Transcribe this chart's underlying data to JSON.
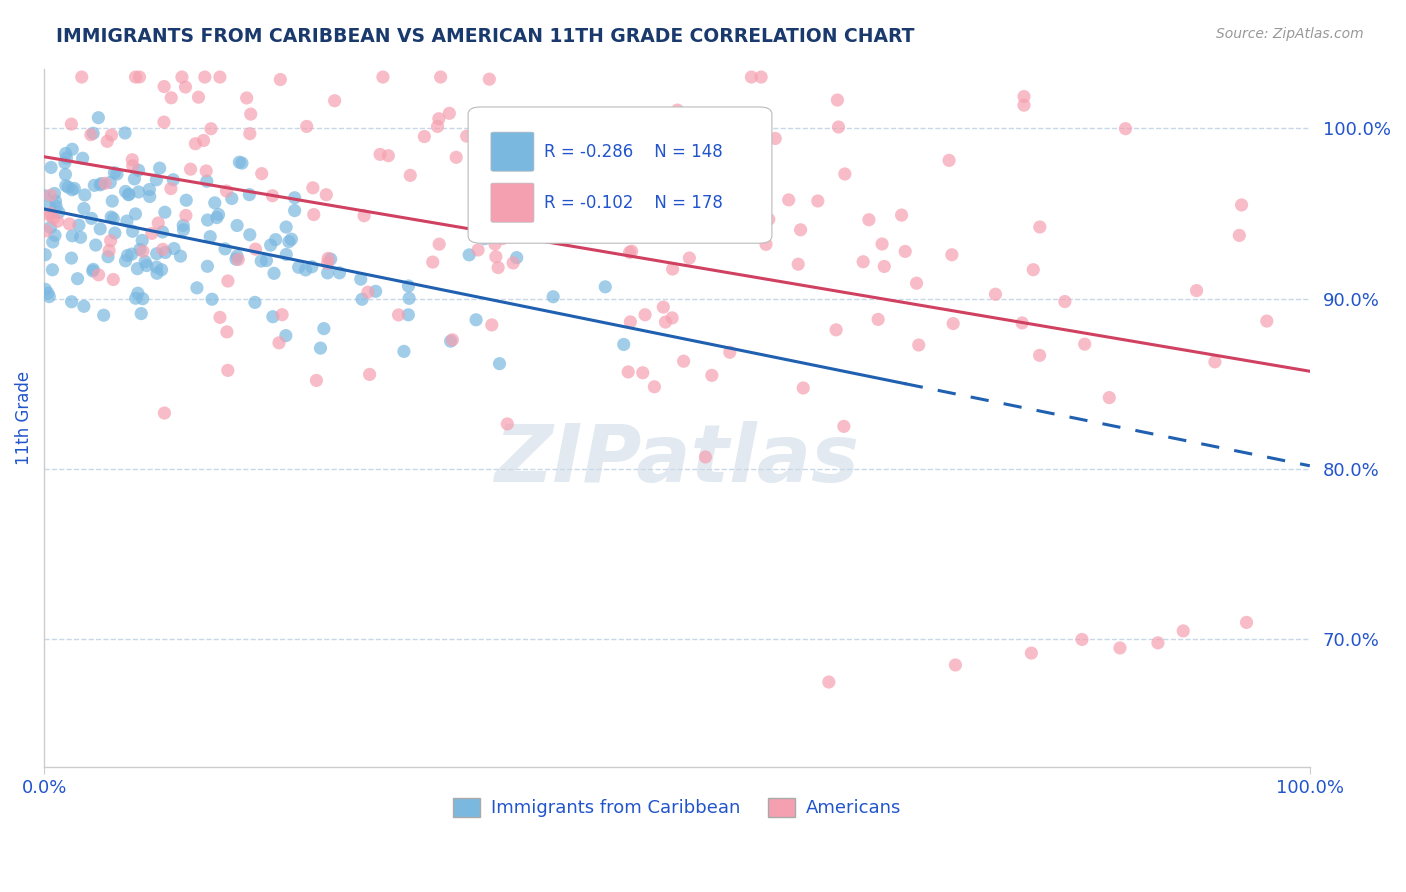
{
  "title": "IMMIGRANTS FROM CARIBBEAN VS AMERICAN 11TH GRADE CORRELATION CHART",
  "source": "Source: ZipAtlas.com",
  "xlabel": "",
  "ylabel": "11th Grade",
  "xlim": [
    0.0,
    1.0
  ],
  "ylim": [
    0.625,
    1.035
  ],
  "yticks": [
    0.7,
    0.8,
    0.9,
    1.0
  ],
  "ytick_labels": [
    "70.0%",
    "80.0%",
    "90.0%",
    "100.0%"
  ],
  "xticks": [
    0.0,
    1.0
  ],
  "xtick_labels": [
    "0.0%",
    "100.0%"
  ],
  "caribbean_R": -0.286,
  "caribbean_N": 148,
  "american_R": -0.102,
  "american_N": 178,
  "caribbean_color": "#7ab8e0",
  "american_color": "#f5a0b0",
  "caribbean_line_color": "#2060b0",
  "american_line_color": "#d04060",
  "watermark": "ZIPatlas",
  "background_color": "#ffffff",
  "grid_color": "#c8d8e8",
  "title_color": "#1a3a6e",
  "source_color": "#999999",
  "axis_label_color": "#2255cc",
  "tick_color": "#2255cc",
  "legend_color": "#2255cc"
}
